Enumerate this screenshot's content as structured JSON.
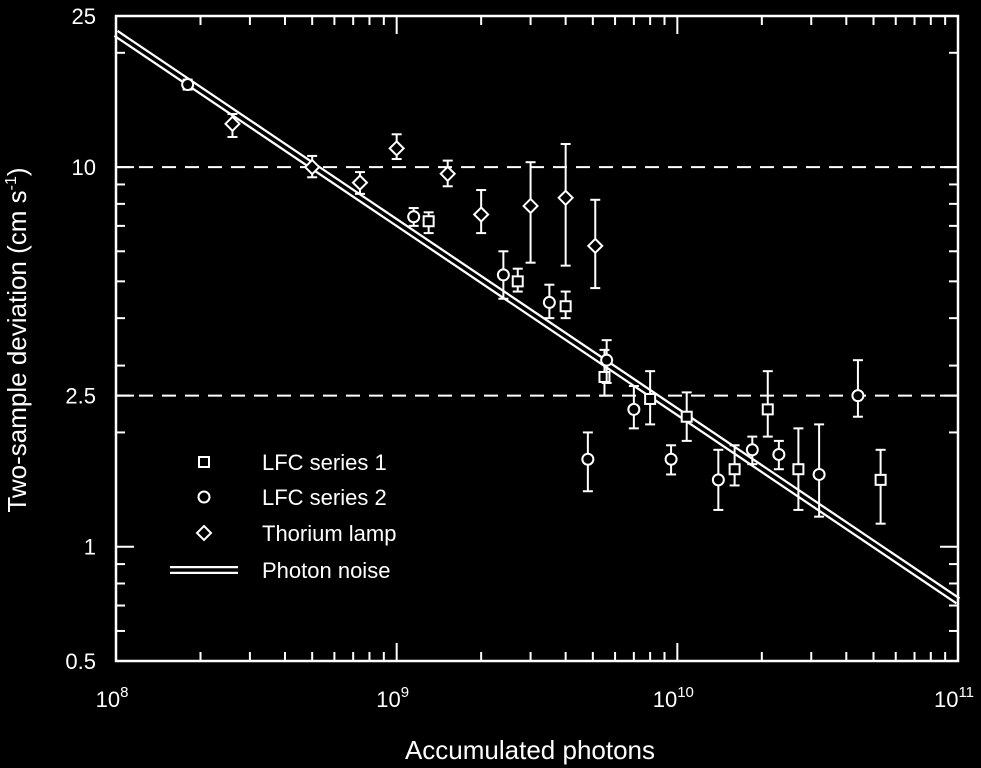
{
  "chart_data": {
    "type": "scatter",
    "xlabel": "Accumulated photons",
    "ylabel": {
      "main": "Two-sample deviation (cm s",
      "exponent": "-1",
      "close": ")"
    },
    "x_scale": "log",
    "y_scale": "log",
    "xlim": [
      100000000,
      100000000000
    ],
    "ylim": [
      0.5,
      25
    ],
    "x_ticks": [
      {
        "value": 100000000,
        "base": "10",
        "exp": "8"
      },
      {
        "value": 1000000000,
        "base": "10",
        "exp": "9"
      },
      {
        "value": 10000000000,
        "base": "10",
        "exp": "10"
      },
      {
        "value": 100000000000,
        "base": "10",
        "exp": "11"
      }
    ],
    "y_ticks": [
      {
        "value": 0.5,
        "label": "0.5"
      },
      {
        "value": 1,
        "label": "1"
      },
      {
        "value": 2.5,
        "label": "2.5"
      },
      {
        "value": 10,
        "label": "10"
      },
      {
        "value": 25,
        "label": "25"
      }
    ],
    "reference_lines_y": [
      10,
      2.5
    ],
    "legend_position": "center-left",
    "colors": {
      "background": "#000000",
      "foreground": "#ffffff"
    },
    "series": [
      {
        "name": "LFC series 1",
        "marker": "square",
        "points": [
          {
            "x": 1300000000,
            "y": 7.2,
            "ylo": 6.7,
            "yhi": 7.6
          },
          {
            "x": 2700000000,
            "y": 5.0,
            "ylo": 4.7,
            "yhi": 5.4
          },
          {
            "x": 4000000000,
            "y": 4.3,
            "ylo": 4.0,
            "yhi": 4.7
          },
          {
            "x": 5500000000,
            "y": 2.8,
            "ylo": 2.5,
            "yhi": 3.3
          },
          {
            "x": 8000000000,
            "y": 2.45,
            "ylo": 2.1,
            "yhi": 2.9
          },
          {
            "x": 10800000000,
            "y": 2.2,
            "ylo": 1.9,
            "yhi": 2.55
          },
          {
            "x": 16000000000,
            "y": 1.6,
            "ylo": 1.45,
            "yhi": 1.85
          },
          {
            "x": 21000000000,
            "y": 2.3,
            "ylo": 1.95,
            "yhi": 2.9
          },
          {
            "x": 27000000000,
            "y": 1.6,
            "ylo": 1.25,
            "yhi": 2.05
          },
          {
            "x": 53000000000,
            "y": 1.5,
            "ylo": 1.15,
            "yhi": 1.8
          }
        ]
      },
      {
        "name": "LFC series 2",
        "marker": "circle",
        "points": [
          {
            "x": 180000000,
            "y": 16.5,
            "ylo": 16.0,
            "yhi": 17.0
          },
          {
            "x": 1150000000,
            "y": 7.4,
            "ylo": 7.0,
            "yhi": 7.8
          },
          {
            "x": 2400000000,
            "y": 5.2,
            "ylo": 4.5,
            "yhi": 6.0
          },
          {
            "x": 3500000000,
            "y": 4.4,
            "ylo": 4.0,
            "yhi": 4.9
          },
          {
            "x": 4800000000,
            "y": 1.7,
            "ylo": 1.4,
            "yhi": 2.0
          },
          {
            "x": 5600000000,
            "y": 3.1,
            "ylo": 2.7,
            "yhi": 3.5
          },
          {
            "x": 7000000000,
            "y": 2.3,
            "ylo": 2.05,
            "yhi": 2.65
          },
          {
            "x": 9500000000,
            "y": 1.7,
            "ylo": 1.55,
            "yhi": 1.85
          },
          {
            "x": 14000000000,
            "y": 1.5,
            "ylo": 1.25,
            "yhi": 1.8
          },
          {
            "x": 18500000000,
            "y": 1.8,
            "ylo": 1.65,
            "yhi": 1.95
          },
          {
            "x": 23000000000,
            "y": 1.75,
            "ylo": 1.6,
            "yhi": 1.9
          },
          {
            "x": 32000000000,
            "y": 1.55,
            "ylo": 1.2,
            "yhi": 2.1
          },
          {
            "x": 44000000000,
            "y": 2.5,
            "ylo": 2.2,
            "yhi": 3.1
          }
        ]
      },
      {
        "name": "Thorium lamp",
        "marker": "diamond",
        "points": [
          {
            "x": 260000000,
            "y": 13.0,
            "ylo": 12.0,
            "yhi": 13.8
          },
          {
            "x": 500000000,
            "y": 10.0,
            "ylo": 9.4,
            "yhi": 10.7
          },
          {
            "x": 740000000,
            "y": 9.1,
            "ylo": 8.5,
            "yhi": 9.7
          },
          {
            "x": 1000000000,
            "y": 11.2,
            "ylo": 10.5,
            "yhi": 12.2
          },
          {
            "x": 1520000000,
            "y": 9.6,
            "ylo": 8.9,
            "yhi": 10.4
          },
          {
            "x": 2000000000,
            "y": 7.5,
            "ylo": 6.7,
            "yhi": 8.7
          },
          {
            "x": 3000000000,
            "y": 7.9,
            "ylo": 5.6,
            "yhi": 10.3
          },
          {
            "x": 4000000000,
            "y": 8.3,
            "ylo": 5.5,
            "yhi": 11.5
          },
          {
            "x": 5100000000,
            "y": 6.2,
            "ylo": 4.8,
            "yhi": 8.2
          }
        ]
      },
      {
        "name": "Photon noise",
        "marker": "line",
        "line": [
          {
            "x": 100000000,
            "y": 22.5
          },
          {
            "x": 100000000000,
            "y": 0.72
          }
        ]
      }
    ]
  }
}
